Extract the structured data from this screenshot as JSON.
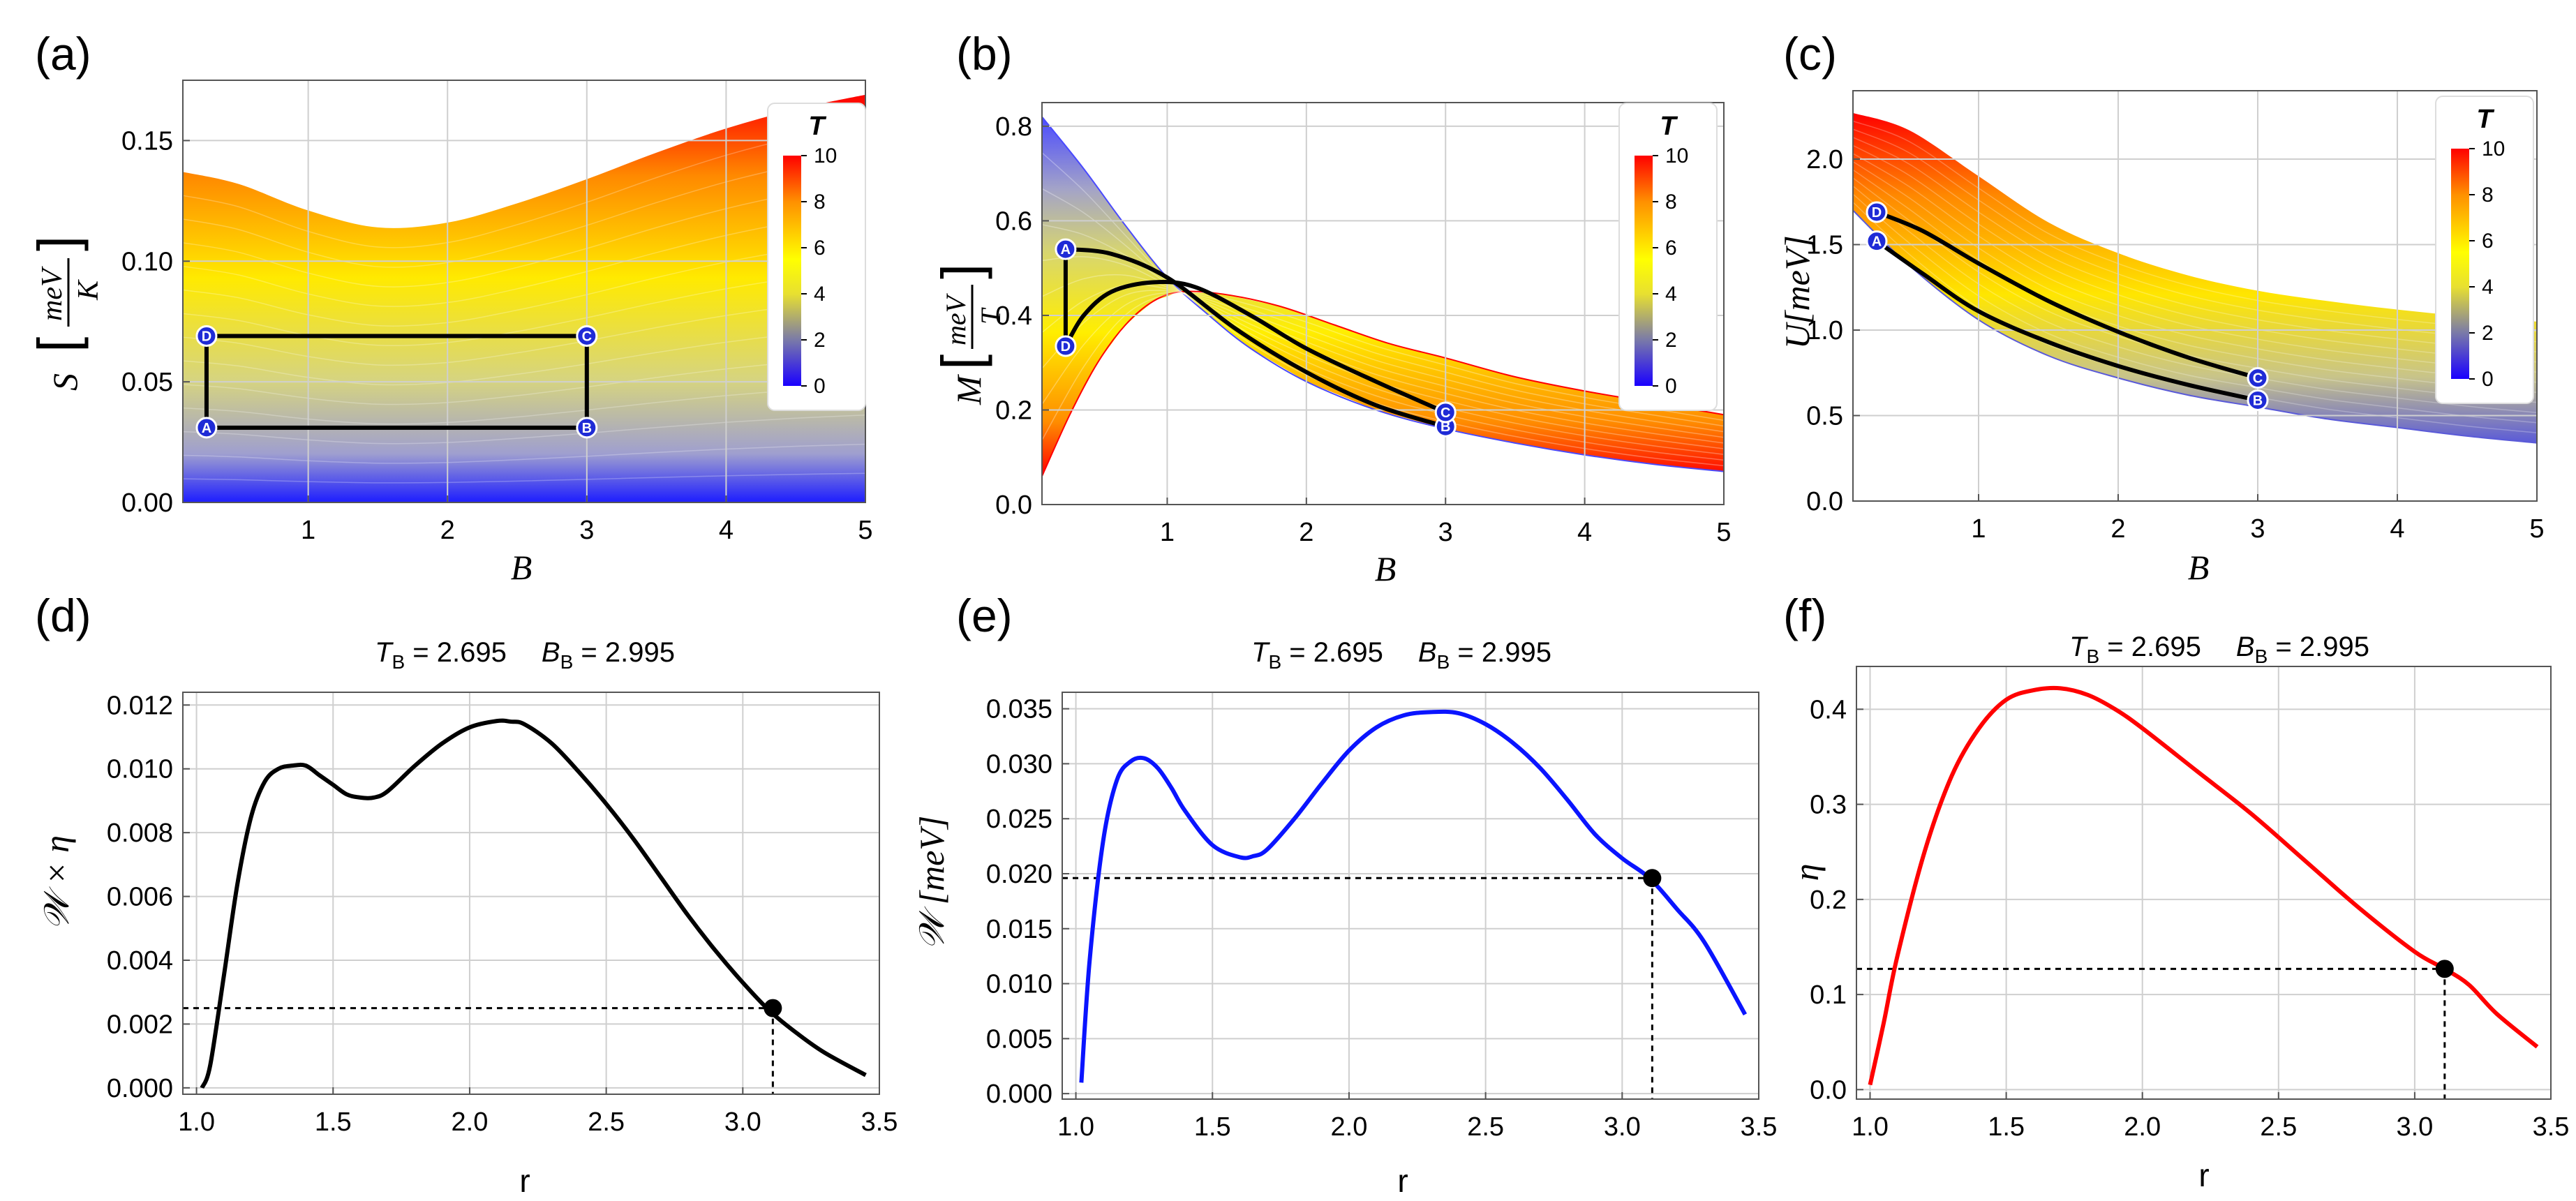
{
  "chart_data": [
    {
      "id": "a",
      "letter": "(a)",
      "type": "area",
      "xlabel": "B",
      "ylabel": "S [meV / K]",
      "ylabel_var": "S",
      "ylabel_num": "meV",
      "ylabel_den": "K",
      "xlim": [
        0.1,
        5
      ],
      "ylim": [
        0,
        0.175
      ],
      "xticks": [
        "1",
        "2",
        "3",
        "4",
        "5"
      ],
      "xtick_values": [
        1,
        2,
        3,
        4,
        5
      ],
      "yticks": [
        "0.00",
        "0.05",
        "0.10",
        "0.15"
      ],
      "ytick_values": [
        0,
        0.05,
        0.1,
        0.15
      ],
      "band": {
        "x": [
          0.1,
          0.5,
          1,
          1.5,
          2,
          2.5,
          3,
          3.5,
          4,
          4.5,
          5
        ],
        "upper": [
          0.137,
          0.132,
          0.121,
          0.114,
          0.116,
          0.124,
          0.134,
          0.145,
          0.155,
          0.163,
          0.169
        ],
        "lower": [
          0.0,
          0.0,
          0.0,
          0.0,
          0.0,
          0.0,
          0.0,
          0.0,
          0.0,
          0.0,
          0.0
        ]
      },
      "legend": {
        "title": "T",
        "ticks": [
          "0",
          "2",
          "4",
          "6",
          "8",
          "10"
        ]
      },
      "cycle": {
        "A": [
          0.27,
          0.031
        ],
        "B": [
          3,
          0.031
        ],
        "C": [
          3,
          0.069
        ],
        "D": [
          0.27,
          0.069
        ]
      }
    },
    {
      "id": "b",
      "letter": "(b)",
      "type": "area",
      "xlabel": "B",
      "ylabel": "M [meV / T]",
      "ylabel_var": "M",
      "ylabel_num": "meV",
      "ylabel_den": "T",
      "xlim": [
        0.1,
        5
      ],
      "ylim": [
        0,
        0.85
      ],
      "xticks": [
        "1",
        "2",
        "3",
        "4",
        "5"
      ],
      "xtick_values": [
        1,
        2,
        3,
        4,
        5
      ],
      "yticks": [
        "0.0",
        "0.2",
        "0.4",
        "0.6",
        "0.8"
      ],
      "ytick_values": [
        0,
        0.2,
        0.4,
        0.6,
        0.8
      ],
      "band_top": {
        "x": [
          0.1,
          0.4,
          0.7,
          1.0,
          1.3,
          1.6,
          2.0,
          2.5,
          3.0,
          3.5,
          4.0,
          4.5,
          5.0
        ],
        "y": [
          0.82,
          0.71,
          0.59,
          0.48,
          0.4,
          0.33,
          0.26,
          0.2,
          0.16,
          0.13,
          0.105,
          0.085,
          0.07
        ]
      },
      "band_bottom": {
        "x": [
          0.1,
          0.3,
          0.5,
          0.7,
          0.9,
          1.1,
          1.4,
          1.8,
          2.2,
          2.6,
          3.0,
          3.5,
          4.0,
          4.5,
          5.0
        ],
        "y": [
          0.06,
          0.19,
          0.3,
          0.38,
          0.43,
          0.45,
          0.445,
          0.42,
          0.38,
          0.34,
          0.31,
          0.27,
          0.24,
          0.215,
          0.19
        ]
      },
      "legend": {
        "title": "T",
        "ticks": [
          "0",
          "2",
          "4",
          "6",
          "8",
          "10"
        ]
      },
      "curve_AB": {
        "x": [
          0.27,
          0.6,
          1.0,
          1.5,
          2.0,
          2.5,
          3.0
        ],
        "y": [
          0.54,
          0.53,
          0.48,
          0.37,
          0.28,
          0.21,
          0.165
        ]
      },
      "curve_DC": {
        "x": [
          0.27,
          0.4,
          0.6,
          0.9,
          1.2,
          1.6,
          2.0,
          2.5,
          3.0
        ],
        "y": [
          0.335,
          0.4,
          0.45,
          0.47,
          0.46,
          0.4,
          0.33,
          0.26,
          0.195
        ]
      },
      "points": {
        "A": [
          0.27,
          0.54
        ],
        "D": [
          0.27,
          0.335
        ],
        "B": [
          3,
          0.165
        ],
        "C": [
          3,
          0.195
        ]
      }
    },
    {
      "id": "c",
      "letter": "(c)",
      "type": "area",
      "xlabel": "B",
      "ylabel": "U [meV]",
      "ylabel_var": "U",
      "ylabel_unit": "[meV]",
      "xlim": [
        0.1,
        5
      ],
      "ylim": [
        0,
        2.4
      ],
      "xticks": [
        "1",
        "2",
        "3",
        "4",
        "5"
      ],
      "xtick_values": [
        1,
        2,
        3,
        4,
        5
      ],
      "yticks": [
        "0.0",
        "0.5",
        "1.0",
        "1.5",
        "2.0"
      ],
      "ytick_values": [
        0,
        0.5,
        1.0,
        1.5,
        2.0
      ],
      "band_top": {
        "x": [
          0.1,
          0.5,
          1.0,
          1.5,
          2.0,
          2.5,
          3.0,
          3.5,
          4.0,
          4.5,
          5.0
        ],
        "y": [
          2.27,
          2.17,
          1.9,
          1.63,
          1.45,
          1.32,
          1.23,
          1.17,
          1.12,
          1.08,
          1.05
        ]
      },
      "band_bottom": {
        "x": [
          0.1,
          0.5,
          1.0,
          1.5,
          2.0,
          2.5,
          3.0,
          3.5,
          4.0,
          4.5,
          5.0
        ],
        "y": [
          1.7,
          1.38,
          1.06,
          0.85,
          0.72,
          0.62,
          0.55,
          0.48,
          0.43,
          0.38,
          0.34
        ]
      },
      "legend": {
        "title": "T",
        "ticks": [
          "0",
          "2",
          "4",
          "6",
          "8",
          "10"
        ]
      },
      "curve_AB": {
        "x": [
          0.27,
          0.6,
          1.0,
          1.5,
          2.0,
          2.5,
          3.0
        ],
        "y": [
          1.52,
          1.33,
          1.11,
          0.93,
          0.79,
          0.68,
          0.59
        ]
      },
      "curve_DC": {
        "x": [
          0.27,
          0.6,
          1.0,
          1.5,
          2.0,
          2.5,
          3.0
        ],
        "y": [
          1.69,
          1.58,
          1.39,
          1.17,
          0.99,
          0.84,
          0.72
        ]
      },
      "points": {
        "A": [
          0.27,
          1.52
        ],
        "D": [
          0.27,
          1.69
        ],
        "B": [
          3,
          0.59
        ],
        "C": [
          3,
          0.72
        ]
      }
    },
    {
      "id": "d",
      "letter": "(d)",
      "type": "line",
      "title_T": "T",
      "title_T_sub": "B",
      "title_T_val": " = 2.695",
      "title_B": "B",
      "title_B_sub": "B",
      "title_B_val": " = 2.995",
      "xlabel": "r",
      "ylabel": "𝒲 × η",
      "xlim": [
        0.95,
        3.5
      ],
      "ylim": [
        -0.0002,
        0.0124
      ],
      "xticks": [
        "1.0",
        "1.5",
        "2.0",
        "2.5",
        "3.0",
        "3.5"
      ],
      "xtick_values": [
        1,
        1.5,
        2,
        2.5,
        3,
        3.5
      ],
      "yticks": [
        "0.000",
        "0.002",
        "0.004",
        "0.006",
        "0.008",
        "0.010",
        "0.012"
      ],
      "ytick_values": [
        0,
        0.002,
        0.004,
        0.006,
        0.008,
        0.01,
        0.012
      ],
      "color": "#000000",
      "series": [
        {
          "name": "W x eta",
          "x": [
            1.02,
            1.05,
            1.1,
            1.15,
            1.2,
            1.25,
            1.3,
            1.35,
            1.4,
            1.45,
            1.5,
            1.55,
            1.6,
            1.65,
            1.7,
            1.8,
            1.9,
            2.0,
            2.1,
            2.15,
            2.2,
            2.3,
            2.4,
            2.5,
            2.6,
            2.7,
            2.8,
            2.9,
            3.0,
            3.1,
            3.2,
            3.3,
            3.45
          ],
          "y": [
            0.0,
            0.0007,
            0.0035,
            0.0064,
            0.0085,
            0.0096,
            0.01,
            0.0101,
            0.0101,
            0.0098,
            0.0095,
            0.0092,
            0.0091,
            0.0091,
            0.0093,
            0.0101,
            0.0108,
            0.0113,
            0.0115,
            0.01148,
            0.0114,
            0.0108,
            0.0099,
            0.0089,
            0.0078,
            0.0066,
            0.0054,
            0.0043,
            0.0033,
            0.0024,
            0.0017,
            0.0011,
            0.0004
          ]
        }
      ],
      "marker": [
        3.11,
        0.0025
      ]
    },
    {
      "id": "e",
      "letter": "(e)",
      "type": "line",
      "title_T": "T",
      "title_T_sub": "B",
      "title_T_val": " = 2.695",
      "title_B": "B",
      "title_B_sub": "B",
      "title_B_val": " = 2.995",
      "xlabel": "r",
      "ylabel": "𝒲 [meV]",
      "xlim": [
        0.95,
        3.5
      ],
      "ylim": [
        -0.0005,
        0.0365
      ],
      "xticks": [
        "1.0",
        "1.5",
        "2.0",
        "2.5",
        "3.0",
        "3.5"
      ],
      "xtick_values": [
        1,
        1.5,
        2,
        2.5,
        3,
        3.5
      ],
      "yticks": [
        "0.000",
        "0.005",
        "0.010",
        "0.015",
        "0.020",
        "0.025",
        "0.030",
        "0.035"
      ],
      "ytick_values": [
        0,
        0.005,
        0.01,
        0.015,
        0.02,
        0.025,
        0.03,
        0.035
      ],
      "color": "#0a14ff",
      "series": [
        {
          "name": "W",
          "x": [
            1.02,
            1.05,
            1.1,
            1.15,
            1.2,
            1.25,
            1.3,
            1.35,
            1.4,
            1.5,
            1.6,
            1.65,
            1.7,
            1.8,
            1.9,
            2.0,
            2.1,
            2.2,
            2.3,
            2.4,
            2.5,
            2.6,
            2.7,
            2.8,
            2.9,
            3.0,
            3.1,
            3.2,
            3.3,
            3.45
          ],
          "y": [
            0.001,
            0.012,
            0.023,
            0.0285,
            0.0302,
            0.0305,
            0.0296,
            0.0278,
            0.0257,
            0.0226,
            0.0215,
            0.0216,
            0.0222,
            0.025,
            0.0282,
            0.0312,
            0.0333,
            0.0344,
            0.0347,
            0.0346,
            0.0336,
            0.0319,
            0.0296,
            0.0267,
            0.0236,
            0.0214,
            0.0196,
            0.0168,
            0.0138,
            0.0072
          ]
        }
      ],
      "marker": [
        3.11,
        0.0196
      ]
    },
    {
      "id": "f",
      "letter": "(f)",
      "type": "line",
      "title_T": "T",
      "title_T_sub": "B",
      "title_T_val": " = 2.695",
      "title_B": "B",
      "title_B_sub": "B",
      "title_B_val": " = 2.995",
      "xlabel": "r",
      "ylabel": "η",
      "xlim": [
        0.95,
        3.5
      ],
      "ylim": [
        -0.01,
        0.445
      ],
      "xticks": [
        "1.0",
        "1.5",
        "2.0",
        "2.5",
        "3.0",
        "3.5"
      ],
      "xtick_values": [
        1,
        1.5,
        2,
        2.5,
        3,
        3.5
      ],
      "yticks": [
        "0.0",
        "0.1",
        "0.2",
        "0.3",
        "0.4"
      ],
      "ytick_values": [
        0,
        0.1,
        0.2,
        0.3,
        0.4
      ],
      "color": "#ff0000",
      "series": [
        {
          "name": "eta",
          "x": [
            1.0,
            1.05,
            1.1,
            1.2,
            1.3,
            1.4,
            1.5,
            1.6,
            1.7,
            1.8,
            1.9,
            2.0,
            2.2,
            2.4,
            2.6,
            2.8,
            3.0,
            3.11,
            3.2,
            3.3,
            3.45
          ],
          "y": [
            0.005,
            0.07,
            0.14,
            0.25,
            0.33,
            0.38,
            0.41,
            0.42,
            0.422,
            0.415,
            0.4,
            0.38,
            0.335,
            0.29,
            0.24,
            0.19,
            0.145,
            0.127,
            0.11,
            0.08,
            0.045
          ]
        }
      ],
      "marker": [
        3.11,
        0.127
      ]
    }
  ]
}
